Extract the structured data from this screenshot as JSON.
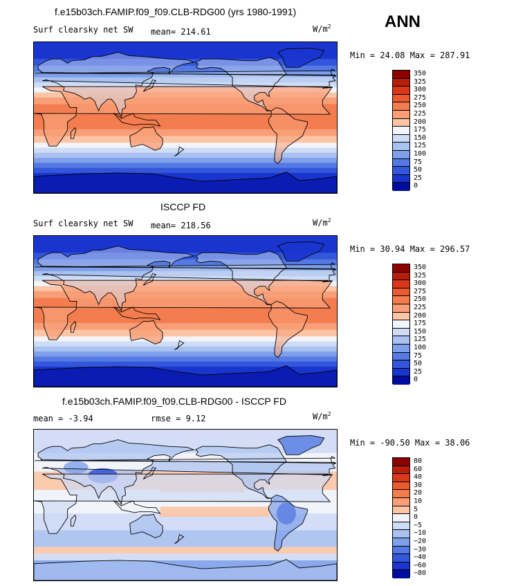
{
  "season": "ANN",
  "units": "W/m",
  "units_sup": "2",
  "panels": [
    {
      "title": "f.e15b03ch.FAMIP.f09_f09.CLB-RDG00 (yrs 1980-1991)",
      "variable": "Surf clearsky net SW",
      "stat_text": "mean= 214.61",
      "minmax": "Min =  24.08 Max = 287.91",
      "colorbar_labels": [
        "350",
        "325",
        "300",
        "275",
        "250",
        "225",
        "200",
        "175",
        "150",
        "125",
        "100",
        "75",
        "50",
        "25",
        "0"
      ],
      "colorbar_colors": [
        "#8c0000",
        "#b81f0a",
        "#d9381a",
        "#ea5a2e",
        "#f37d4e",
        "#f89f77",
        "#fbc5a6",
        "#f2f4fb",
        "#cfdcf5",
        "#a9c1f0",
        "#7ea0ea",
        "#5479e2",
        "#3356db",
        "#1a35cf",
        "#000c9e"
      ],
      "field_type": "abs"
    },
    {
      "title": "ISCCP FD",
      "variable": "Surf clearsky net SW",
      "stat_text": "mean= 218.56",
      "minmax": "Min =  30.94 Max = 296.57",
      "colorbar_labels": [
        "350",
        "325",
        "300",
        "275",
        "250",
        "225",
        "200",
        "175",
        "150",
        "125",
        "100",
        "75",
        "50",
        "25",
        "0"
      ],
      "colorbar_colors": [
        "#8c0000",
        "#b81f0a",
        "#d9381a",
        "#ea5a2e",
        "#f37d4e",
        "#f89f77",
        "#fbc5a6",
        "#f2f4fb",
        "#cfdcf5",
        "#a9c1f0",
        "#7ea0ea",
        "#5479e2",
        "#3356db",
        "#1a35cf",
        "#000c9e"
      ],
      "field_type": "abs"
    },
    {
      "title": "f.e15b03ch.FAMIP.f09_f09.CLB-RDG00 - ISCCP FD",
      "variable": "",
      "stat_text": "mean =   -3.94",
      "stat_text2": "rmse =    9.12",
      "minmax": "Min = -90.50 Max =  38.06",
      "colorbar_labels": [
        "80",
        "60",
        "40",
        "30",
        "20",
        "10",
        "5",
        "0",
        "−5",
        "−10",
        "−20",
        "−30",
        "−40",
        "−60",
        "−80"
      ],
      "colorbar_colors": [
        "#8c0000",
        "#b81f0a",
        "#d9381a",
        "#ea5a2e",
        "#f37d4e",
        "#f89f77",
        "#fbc5a6",
        "#f2f4fb",
        "#cfdcf5",
        "#a9c1f0",
        "#7ea0ea",
        "#5479e2",
        "#3356db",
        "#1a35cf",
        "#000c9e"
      ],
      "field_type": "diff"
    }
  ]
}
